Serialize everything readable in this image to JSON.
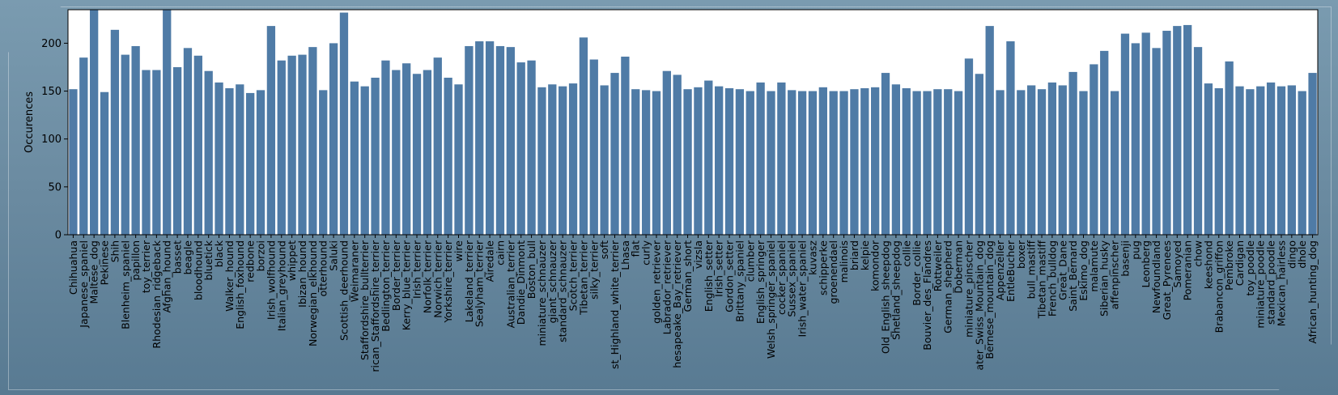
{
  "chart_data": {
    "type": "bar",
    "ylabel": "Occurences",
    "xlabel": "",
    "ylim": [
      0,
      235
    ],
    "yticks": [
      "0",
      "50",
      "100",
      "150",
      "200"
    ],
    "bar_color": "#4f7ba6",
    "plot_background": "#ffffff",
    "categories": [
      "Chihuahua",
      "Japanese_spaniel",
      "Maltese_dog",
      "Pekinese",
      "Shih",
      "Blenheim_spaniel",
      "papillon",
      "toy_terrier",
      "Rhodesian_ridgeback",
      "Afghan_hound",
      "basset",
      "beagle",
      "bloodhound",
      "bluetick",
      "black",
      "Walker_hound",
      "English_foxhound",
      "redbone",
      "borzoi",
      "Irish_wolfhound",
      "Italian_greyhound",
      "whippet",
      "Ibizan_hound",
      "Norwegian_elkhound",
      "otterhound",
      "Saluki",
      "Scottish_deerhound",
      "Weimaraner",
      "Staffordshire_bullterrier",
      "rican_Staffordshire_terrier",
      "Bedlington_terrier",
      "Border_terrier",
      "Kerry_blue_terrier",
      "Irish_terrier",
      "Norfolk_terrier",
      "Norwich_terrier",
      "Yorkshire_terrier",
      "wire",
      "Lakeland_terrier",
      "Sealyham_terrier",
      "Airedale",
      "cairn",
      "Australian_terrier",
      "Dandie_Dinmont",
      "Boston_bull",
      "miniature_schnauzer",
      "giant_schnauzer",
      "standard_schnauzer",
      "Scotch_terrier",
      "Tibetan_terrier",
      "silky_terrier",
      "soft",
      "st_Highland_white_terrier",
      "Lhasa",
      "flat",
      "curly",
      "golden_retriever",
      "Labrador_retriever",
      "hesapeake_Bay_retriever",
      "German_short",
      "vizsla",
      "English_setter",
      "Irish_setter",
      "Gordon_setter",
      "Brittany_spaniel",
      "clumber",
      "English_springer",
      "Welsh_springer_spaniel",
      "cocker_spaniel",
      "Sussex_spaniel",
      "Irish_water_spaniel",
      "kuvasz",
      "schipperke",
      "groenendael",
      "malinois",
      "briard",
      "kelpie",
      "komondor",
      "Old_English_sheepdog",
      "Shetland_sheepdog",
      "collie",
      "Border_collie",
      "Bouvier_des_Flandres",
      "Rottweiler",
      "German_shepherd",
      "Doberman",
      "miniature_pinscher",
      "ater_Swiss_Mountain_dog",
      "Bernese_mountain_dog",
      "Appenzeller",
      "EntleBucher",
      "boxer",
      "bull_mastiff",
      "Tibetan_mastiff",
      "French_bulldog",
      "Great_Dane",
      "Saint_Bernard",
      "Eskimo_dog",
      "malamute",
      "Siberian_husky",
      "affenpinscher",
      "basenji",
      "pug",
      "Leonberg",
      "Newfoundland",
      "Great_Pyrenees",
      "Samoyed",
      "Pomeranian",
      "chow",
      "keeshond",
      "Brabancon_griffon",
      "Pembroke",
      "Cardigan",
      "toy_poodle",
      "miniature_poodle",
      "standard_poodle",
      "Mexican_hairless",
      "dingo",
      "dhole",
      "African_hunting_dog"
    ],
    "values": [
      152,
      185,
      252,
      149,
      214,
      188,
      197,
      172,
      172,
      239,
      175,
      195,
      187,
      171,
      159,
      153,
      157,
      148,
      151,
      218,
      182,
      187,
      188,
      196,
      151,
      200,
      232,
      160,
      155,
      164,
      182,
      172,
      179,
      168,
      172,
      185,
      164,
      157,
      197,
      202,
      202,
      197,
      196,
      180,
      182,
      154,
      157,
      155,
      158,
      206,
      183,
      156,
      169,
      186,
      152,
      151,
      150,
      171,
      167,
      152,
      154,
      161,
      155,
      153,
      152,
      150,
      159,
      150,
      159,
      151,
      150,
      150,
      154,
      150,
      150,
      152,
      153,
      154,
      169,
      157,
      153,
      150,
      150,
      152,
      152,
      150,
      184,
      168,
      218,
      151,
      202,
      151,
      156,
      152,
      159,
      156,
      170,
      150,
      178,
      192,
      150,
      210,
      200,
      211,
      195,
      213,
      218,
      219,
      196,
      158,
      153,
      181,
      155,
      152,
      155,
      159,
      155,
      156,
      150,
      169
    ]
  }
}
